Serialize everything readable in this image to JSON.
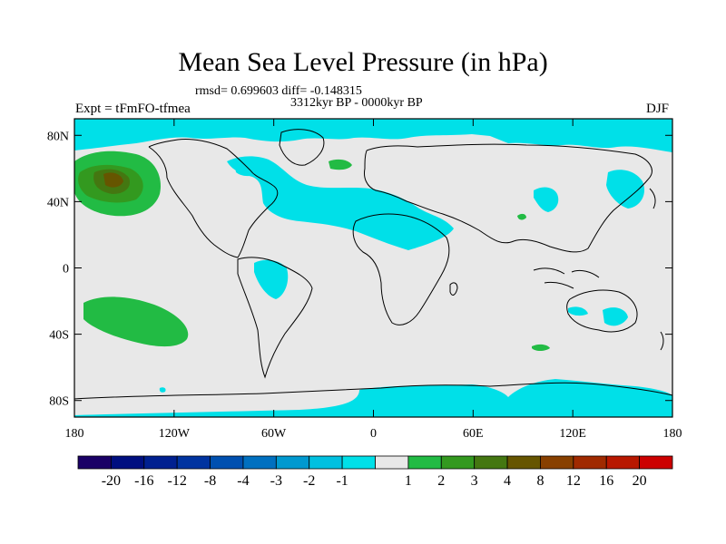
{
  "title": "Mean Sea Level Pressure (in hPa)",
  "stats": "rmsd= 0.699603 diff= -0.148315",
  "period": "3312kyr BP - 0000kyr BP",
  "experiment": "Expt = tFmFO-tfmea",
  "season": "DJF",
  "map": {
    "lon_ticks": [
      "180",
      "120W",
      "60W",
      "0",
      "60E",
      "120E",
      "180"
    ],
    "lat_ticks": [
      "80N",
      "40N",
      "0",
      "40S",
      "80S"
    ]
  },
  "colorbar": {
    "labels": [
      "-20",
      "-16",
      "-12",
      "-8",
      "-4",
      "-3",
      "-2",
      "-1",
      "1",
      "2",
      "3",
      "4",
      "8",
      "12",
      "16",
      "20"
    ],
    "colors": [
      "#1a0066",
      "#000f80",
      "#002090",
      "#0033a0",
      "#0050b0",
      "#0070c0",
      "#0099d0",
      "#00c0e0",
      "#00e0e8",
      "#e8e8e8",
      "#22bb44",
      "#33991f",
      "#447711",
      "#665500",
      "#884000",
      "#a02a00",
      "#b81800",
      "#cc0000"
    ]
  },
  "colors": {
    "background_field": "#e8e8e8",
    "negative_anomaly": "#00e0e8",
    "positive_anomaly": "#22bb44"
  }
}
